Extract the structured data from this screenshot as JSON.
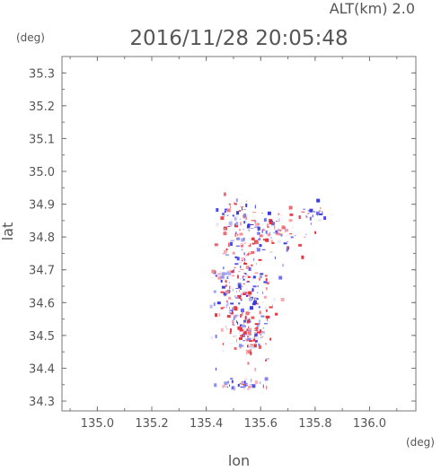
{
  "header": {
    "alt_label": "ALT(km)  2.0",
    "timestamp": "2016/11/28  20:05:48"
  },
  "chart_data": {
    "type": "heatmap",
    "title": "2016/11/28  20:05:48",
    "xlabel": "lon",
    "ylabel": "lat",
    "x_unit": "(deg)",
    "y_unit": "(deg)",
    "xlim": [
      134.87,
      136.17
    ],
    "ylim": [
      34.27,
      35.35
    ],
    "x_ticks": [
      135.0,
      135.2,
      135.4,
      135.6,
      135.8,
      136.0
    ],
    "x_tick_labels": [
      "135.0",
      "135.2",
      "135.4",
      "135.6",
      "135.8",
      "136.0"
    ],
    "y_ticks": [
      34.3,
      34.4,
      34.5,
      34.6,
      34.7,
      34.8,
      34.9,
      35.0,
      35.1,
      35.2,
      35.3
    ],
    "y_tick_labels": [
      "34.3",
      "34.4",
      "34.5",
      "34.6",
      "34.7",
      "34.8",
      "34.9",
      "35.0",
      "35.1",
      "35.2",
      "35.3"
    ],
    "grid": false,
    "colors": {
      "positive": "#e8323c",
      "negative": "#3a3ae0",
      "axis": "#777777"
    },
    "clusters": [
      {
        "lon": 135.535,
        "lat": 34.62,
        "slon": 0.05,
        "slat": 0.08,
        "n": 240,
        "v": 0.0,
        "vs": 0.9
      },
      {
        "lon": 135.56,
        "lat": 34.51,
        "slon": 0.03,
        "slat": 0.035,
        "n": 90,
        "v": 0.4,
        "vs": 0.8
      },
      {
        "lon": 135.6,
        "lat": 34.82,
        "slon": 0.07,
        "slat": 0.03,
        "n": 130,
        "v": 0.0,
        "vs": 0.9
      },
      {
        "lon": 135.5,
        "lat": 34.88,
        "slon": 0.03,
        "slat": 0.02,
        "n": 30,
        "v": -0.3,
        "vs": 0.7
      },
      {
        "lon": 135.78,
        "lat": 34.875,
        "slon": 0.04,
        "slat": 0.015,
        "n": 25,
        "v": -0.4,
        "vs": 0.7
      },
      {
        "lon": 135.52,
        "lat": 34.355,
        "slon": 0.05,
        "slat": 0.008,
        "n": 40,
        "v": -0.5,
        "vs": 0.6
      },
      {
        "lon": 135.45,
        "lat": 34.68,
        "slon": 0.02,
        "slat": 0.02,
        "n": 20,
        "v": -0.3,
        "vs": 0.6
      }
    ]
  }
}
